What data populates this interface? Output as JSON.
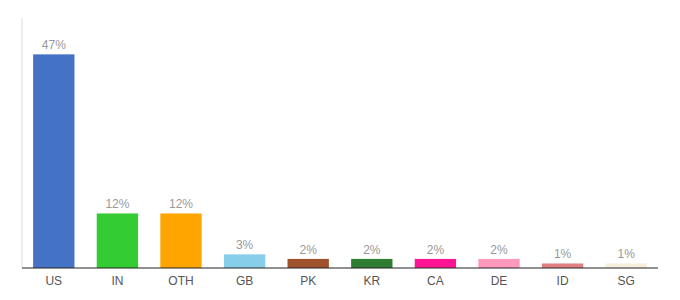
{
  "chart_data": {
    "type": "bar",
    "categories": [
      "US",
      "IN",
      "OTH",
      "GB",
      "PK",
      "KR",
      "CA",
      "DE",
      "ID",
      "SG"
    ],
    "values": [
      47,
      12,
      12,
      3,
      2,
      2,
      2,
      2,
      1,
      1
    ],
    "value_labels": [
      "47%",
      "12%",
      "12%",
      "3%",
      "2%",
      "2%",
      "2%",
      "2%",
      "1%",
      "1%"
    ],
    "colors": [
      "#4472C4",
      "#33CC33",
      "#FFA500",
      "#87CEEB",
      "#A0522D",
      "#2E7D32",
      "#FF1493",
      "#FF99BB",
      "#E08080",
      "#F5F0DC"
    ],
    "ylim": [
      0,
      55
    ],
    "tick_labels": "x",
    "grid": false,
    "data_labels": true
  }
}
